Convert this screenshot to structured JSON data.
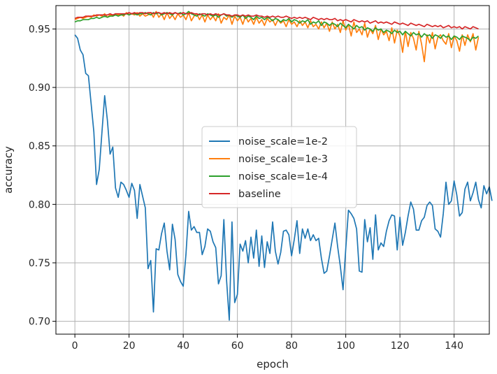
{
  "chart_data": {
    "type": "line",
    "title": "",
    "xlabel": "epoch",
    "ylabel": "accuracy",
    "xlim": [
      -7,
      153
    ],
    "ylim": [
      0.689,
      0.97
    ],
    "xticks": [
      0,
      20,
      40,
      60,
      80,
      100,
      120,
      140
    ],
    "yticks": [
      0.7,
      0.75,
      0.8,
      0.85,
      0.9,
      0.95
    ],
    "xtick_labels": [
      "0",
      "20",
      "40",
      "60",
      "80",
      "100",
      "120",
      "140"
    ],
    "ytick_labels": [
      "0.70",
      "0.75",
      "0.80",
      "0.85",
      "0.90",
      "0.95"
    ],
    "grid": true,
    "legend_position": "center",
    "series": [
      {
        "name": "noise_scale=1e-2",
        "color": "#1f77b4",
        "values": [
          0.945,
          0.942,
          0.932,
          0.928,
          0.912,
          0.91,
          0.886,
          0.862,
          0.817,
          0.83,
          0.862,
          0.893,
          0.872,
          0.843,
          0.849,
          0.814,
          0.806,
          0.819,
          0.817,
          0.812,
          0.806,
          0.818,
          0.812,
          0.788,
          0.817,
          0.807,
          0.797,
          0.745,
          0.752,
          0.708,
          0.762,
          0.761,
          0.775,
          0.784,
          0.76,
          0.744,
          0.783,
          0.77,
          0.74,
          0.734,
          0.73,
          0.757,
          0.794,
          0.778,
          0.781,
          0.776,
          0.776,
          0.757,
          0.764,
          0.779,
          0.777,
          0.768,
          0.763,
          0.732,
          0.739,
          0.787,
          0.735,
          0.701,
          0.785,
          0.716,
          0.723,
          0.766,
          0.76,
          0.769,
          0.75,
          0.772,
          0.754,
          0.778,
          0.747,
          0.773,
          0.746,
          0.768,
          0.758,
          0.785,
          0.76,
          0.749,
          0.759,
          0.777,
          0.778,
          0.774,
          0.756,
          0.77,
          0.786,
          0.758,
          0.779,
          0.771,
          0.779,
          0.769,
          0.774,
          0.769,
          0.771,
          0.754,
          0.741,
          0.743,
          0.756,
          0.77,
          0.784,
          0.764,
          0.747,
          0.727,
          0.762,
          0.795,
          0.792,
          0.788,
          0.779,
          0.743,
          0.742,
          0.787,
          0.768,
          0.78,
          0.753,
          0.791,
          0.761,
          0.767,
          0.764,
          0.777,
          0.786,
          0.791,
          0.79,
          0.761,
          0.789,
          0.765,
          0.776,
          0.79,
          0.802,
          0.796,
          0.778,
          0.778,
          0.786,
          0.789,
          0.799,
          0.802,
          0.799,
          0.779,
          0.777,
          0.772,
          0.792,
          0.819,
          0.8,
          0.803,
          0.82,
          0.808,
          0.79,
          0.793,
          0.813,
          0.819,
          0.803,
          0.81,
          0.819,
          0.804,
          0.797,
          0.816,
          0.809,
          0.815,
          0.803
        ]
      },
      {
        "name": "noise_scale=1e-3",
        "color": "#ff7f0e",
        "values": [
          0.958,
          0.959,
          0.96,
          0.959,
          0.96,
          0.961,
          0.96,
          0.962,
          0.961,
          0.962,
          0.961,
          0.963,
          0.96,
          0.962,
          0.961,
          0.963,
          0.962,
          0.963,
          0.961,
          0.964,
          0.962,
          0.963,
          0.962,
          0.964,
          0.961,
          0.963,
          0.961,
          0.962,
          0.964,
          0.96,
          0.965,
          0.96,
          0.963,
          0.958,
          0.964,
          0.959,
          0.962,
          0.958,
          0.963,
          0.96,
          0.962,
          0.958,
          0.964,
          0.957,
          0.961,
          0.963,
          0.958,
          0.962,
          0.956,
          0.962,
          0.958,
          0.961,
          0.957,
          0.963,
          0.955,
          0.96,
          0.958,
          0.962,
          0.954,
          0.961,
          0.957,
          0.96,
          0.954,
          0.961,
          0.956,
          0.959,
          0.954,
          0.96,
          0.955,
          0.958,
          0.953,
          0.959,
          0.956,
          0.958,
          0.953,
          0.958,
          0.955,
          0.957,
          0.952,
          0.958,
          0.954,
          0.956,
          0.952,
          0.957,
          0.953,
          0.956,
          0.951,
          0.957,
          0.952,
          0.954,
          0.95,
          0.956,
          0.951,
          0.955,
          0.948,
          0.956,
          0.95,
          0.954,
          0.947,
          0.957,
          0.949,
          0.954,
          0.944,
          0.956,
          0.947,
          0.95,
          0.945,
          0.955,
          0.943,
          0.95,
          0.946,
          0.953,
          0.941,
          0.95,
          0.945,
          0.948,
          0.94,
          0.951,
          0.938,
          0.949,
          0.944,
          0.93,
          0.948,
          0.935,
          0.947,
          0.942,
          0.932,
          0.948,
          0.937,
          0.922,
          0.945,
          0.938,
          0.947,
          0.933,
          0.943,
          0.945,
          0.94,
          0.937,
          0.946,
          0.934,
          0.944,
          0.94,
          0.931,
          0.945,
          0.936,
          0.945,
          0.939,
          0.946,
          0.932,
          0.943
        ]
      },
      {
        "name": "noise_scale=1e-4",
        "color": "#2ca02c",
        "values": [
          0.956,
          0.957,
          0.957,
          0.958,
          0.958,
          0.958,
          0.959,
          0.959,
          0.96,
          0.959,
          0.96,
          0.961,
          0.96,
          0.961,
          0.961,
          0.962,
          0.961,
          0.962,
          0.962,
          0.963,
          0.962,
          0.963,
          0.963,
          0.962,
          0.963,
          0.963,
          0.964,
          0.963,
          0.962,
          0.964,
          0.963,
          0.964,
          0.962,
          0.963,
          0.964,
          0.963,
          0.962,
          0.964,
          0.963,
          0.964,
          0.962,
          0.963,
          0.965,
          0.963,
          0.962,
          0.961,
          0.963,
          0.962,
          0.961,
          0.963,
          0.962,
          0.961,
          0.962,
          0.96,
          0.962,
          0.963,
          0.961,
          0.962,
          0.96,
          0.962,
          0.961,
          0.96,
          0.962,
          0.959,
          0.961,
          0.96,
          0.958,
          0.961,
          0.959,
          0.96,
          0.958,
          0.96,
          0.959,
          0.957,
          0.959,
          0.958,
          0.956,
          0.958,
          0.957,
          0.959,
          0.956,
          0.958,
          0.957,
          0.955,
          0.957,
          0.956,
          0.958,
          0.954,
          0.956,
          0.955,
          0.957,
          0.953,
          0.956,
          0.955,
          0.953,
          0.955,
          0.954,
          0.952,
          0.955,
          0.953,
          0.951,
          0.954,
          0.952,
          0.95,
          0.953,
          0.951,
          0.952,
          0.949,
          0.951,
          0.95,
          0.948,
          0.951,
          0.949,
          0.95,
          0.947,
          0.949,
          0.948,
          0.946,
          0.949,
          0.947,
          0.948,
          0.945,
          0.948,
          0.946,
          0.944,
          0.947,
          0.945,
          0.946,
          0.943,
          0.946,
          0.944,
          0.945,
          0.942,
          0.945,
          0.944,
          0.942,
          0.945,
          0.943,
          0.944,
          0.941,
          0.944,
          0.943,
          0.941,
          0.944,
          0.943,
          0.942,
          0.94,
          0.943,
          0.942,
          0.944
        ]
      },
      {
        "name": "baseline",
        "color": "#d62728",
        "values": [
          0.959,
          0.96,
          0.96,
          0.96,
          0.961,
          0.961,
          0.961,
          0.961,
          0.962,
          0.962,
          0.962,
          0.962,
          0.962,
          0.963,
          0.962,
          0.963,
          0.963,
          0.963,
          0.963,
          0.963,
          0.964,
          0.963,
          0.964,
          0.963,
          0.964,
          0.964,
          0.963,
          0.964,
          0.964,
          0.963,
          0.964,
          0.964,
          0.963,
          0.964,
          0.963,
          0.964,
          0.963,
          0.964,
          0.963,
          0.963,
          0.964,
          0.963,
          0.963,
          0.964,
          0.963,
          0.963,
          0.962,
          0.963,
          0.963,
          0.962,
          0.963,
          0.962,
          0.963,
          0.962,
          0.962,
          0.963,
          0.962,
          0.962,
          0.961,
          0.962,
          0.962,
          0.961,
          0.962,
          0.961,
          0.962,
          0.961,
          0.961,
          0.962,
          0.961,
          0.961,
          0.96,
          0.961,
          0.96,
          0.961,
          0.96,
          0.961,
          0.96,
          0.96,
          0.961,
          0.96,
          0.959,
          0.96,
          0.959,
          0.96,
          0.959,
          0.96,
          0.959,
          0.958,
          0.96,
          0.959,
          0.958,
          0.959,
          0.958,
          0.959,
          0.958,
          0.958,
          0.959,
          0.957,
          0.958,
          0.957,
          0.958,
          0.957,
          0.956,
          0.958,
          0.957,
          0.956,
          0.957,
          0.956,
          0.957,
          0.955,
          0.956,
          0.957,
          0.955,
          0.956,
          0.955,
          0.956,
          0.955,
          0.954,
          0.956,
          0.955,
          0.954,
          0.955,
          0.954,
          0.953,
          0.955,
          0.954,
          0.953,
          0.954,
          0.953,
          0.952,
          0.954,
          0.953,
          0.952,
          0.953,
          0.952,
          0.953,
          0.951,
          0.952,
          0.953,
          0.951,
          0.952,
          0.951,
          0.952,
          0.95,
          0.952,
          0.951,
          0.95,
          0.952,
          0.951,
          0.95
        ]
      }
    ]
  }
}
